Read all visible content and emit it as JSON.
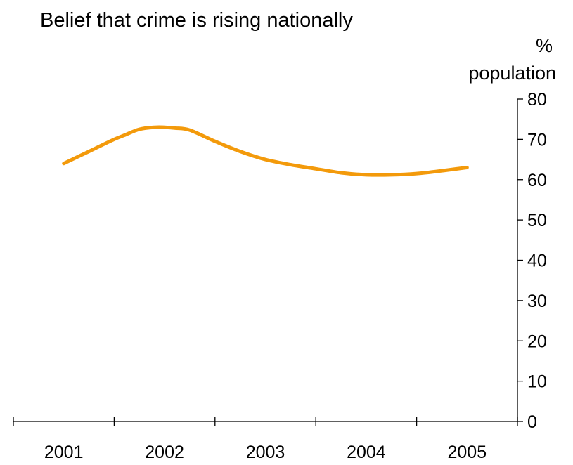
{
  "chart_data": {
    "type": "line",
    "title": "Belief that crime is rising nationally",
    "xlabel": "",
    "ylabel": "",
    "y_unit_line1": "%",
    "y_unit_line2": "population",
    "categories": [
      "2001",
      "2002",
      "2003",
      "2004",
      "2005"
    ],
    "x": [
      2001.0,
      2001.25,
      2001.5,
      2001.6,
      2001.75,
      2001.9,
      2002.0,
      2002.1,
      2002.25,
      2002.5,
      2002.75,
      2003.0,
      2003.25,
      2003.5,
      2003.75,
      2004.0,
      2004.25,
      2004.5,
      2004.75,
      2005.0
    ],
    "series": [
      {
        "color": "#F39A0B",
        "values": [
          64,
          67,
          70,
          71,
          72.5,
          73,
          73,
          72.8,
          72.3,
          69.5,
          67,
          65,
          63.7,
          62.7,
          61.7,
          61.2,
          61.2,
          61.5,
          62.2,
          63
        ]
      }
    ],
    "y_ticks": [
      0,
      10,
      20,
      30,
      40,
      50,
      60,
      70,
      80
    ],
    "ylim": [
      0,
      80
    ],
    "y_axis_position": "right",
    "grid": false,
    "legend": "none"
  }
}
